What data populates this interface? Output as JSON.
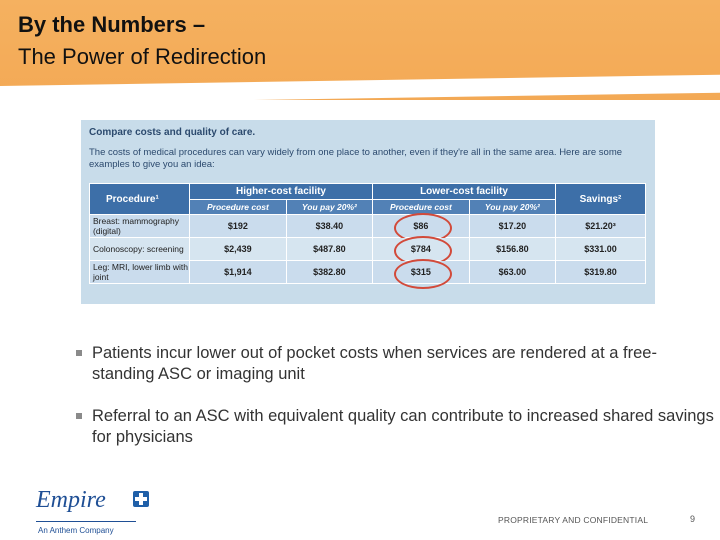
{
  "header": {
    "title_line1": "By the Numbers –",
    "title_line2": "The Power of Redirection"
  },
  "card": {
    "title": "Compare costs and quality of care.",
    "intro": "The costs of medical procedures can vary widely from one place to another, even if they're all in the same area. Here are some examples to give you an idea:",
    "headers": {
      "procedure": "Procedure¹",
      "higher": "Higher-cost facility",
      "lower": "Lower-cost facility",
      "savings": "Savings²",
      "proc_cost": "Procedure cost",
      "you_pay": "You pay 20%²"
    },
    "rows": [
      {
        "procedure": "Breast: mammography (digital)",
        "high_cost": "$192",
        "high_pay": "$38.40",
        "low_cost": "$86",
        "low_pay": "$17.20",
        "savings": "$21.20³"
      },
      {
        "procedure": "Colonoscopy: screening",
        "high_cost": "$2,439",
        "high_pay": "$487.80",
        "low_cost": "$784",
        "low_pay": "$156.80",
        "savings": "$331.00"
      },
      {
        "procedure": "Leg: MRI, lower limb with joint",
        "high_cost": "$1,914",
        "high_pay": "$382.80",
        "low_cost": "$315",
        "low_pay": "$63.00",
        "savings": "$319.80"
      }
    ]
  },
  "bullets": [
    "Patients incur lower out of pocket costs when services are rendered at a free-standing ASC or imaging unit",
    "Referral to an ASC with equivalent quality can contribute to increased shared savings for physicians"
  ],
  "footer": {
    "logo_text": "Empire",
    "logo_sub": "An Anthem Company",
    "confidential": "PROPRIETARY AND CONFIDENTIAL",
    "page": "9"
  },
  "colors": {
    "header_band": "#f3a955",
    "table_header": "#3d6fa8",
    "circle": "#d24a3a"
  }
}
